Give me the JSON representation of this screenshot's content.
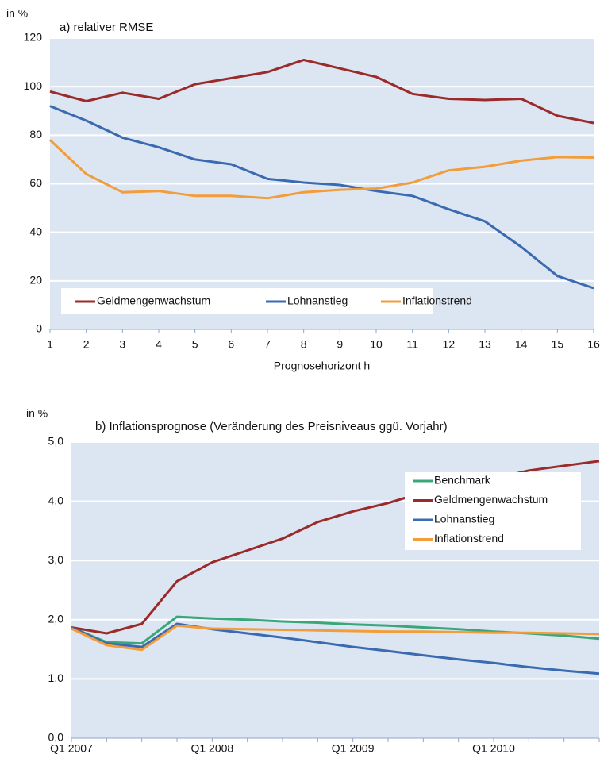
{
  "chart_data": [
    {
      "type": "line",
      "title": "a) relativer RMSE",
      "y_label": "in %",
      "x_label": "Prognosehorizont h",
      "x": [
        1,
        2,
        3,
        4,
        5,
        6,
        7,
        8,
        9,
        10,
        11,
        12,
        13,
        14,
        15,
        16
      ],
      "xlim": [
        1,
        16
      ],
      "xticks": [
        1,
        2,
        3,
        4,
        5,
        6,
        7,
        8,
        9,
        10,
        11,
        12,
        13,
        14,
        15,
        16
      ],
      "ylim": [
        0,
        120
      ],
      "yticks": [
        0,
        20,
        40,
        60,
        80,
        100,
        120
      ],
      "grid": true,
      "legend": "bottom-left",
      "series": [
        {
          "name": "Geldmengenwachstum",
          "color": "#9b2a2a",
          "values": [
            98,
            94,
            97.5,
            95,
            101,
            103.5,
            106,
            111,
            107.5,
            104,
            97,
            95,
            94.5,
            95,
            88,
            85
          ]
        },
        {
          "name": "Lohnanstieg",
          "color": "#3a6ab0",
          "values": [
            92,
            86,
            79,
            75,
            70,
            68,
            62,
            60.5,
            59.5,
            57,
            55,
            49.5,
            44.5,
            34,
            22,
            17
          ]
        },
        {
          "name": "Inflationstrend",
          "color": "#f39c3a",
          "values": [
            78,
            64,
            56.5,
            57,
            55,
            55,
            54,
            56.5,
            57.5,
            58,
            60.5,
            65.5,
            67,
            69.5,
            71,
            70.8
          ]
        }
      ]
    },
    {
      "type": "line",
      "title": "b) Inflationsprognose (Veränderung des Preisniveaus ggü. Vorjahr)",
      "y_label": "in %",
      "categories": [
        "Q1 2007",
        null,
        null,
        null,
        "Q1 2008",
        null,
        null,
        null,
        "Q1 2009",
        null,
        null,
        null,
        "Q1 2010",
        null,
        null,
        null
      ],
      "ylim": [
        0,
        5
      ],
      "yticks": [
        {
          "value": 0,
          "label": "0,0"
        },
        {
          "value": 1,
          "label": "1,0"
        },
        {
          "value": 2,
          "label": "2,0"
        },
        {
          "value": 3,
          "label": "3,0"
        },
        {
          "value": 4,
          "label": "4,0"
        },
        {
          "value": 5,
          "label": "5,0"
        }
      ],
      "grid": true,
      "legend": "top-right",
      "series": [
        {
          "name": "Benchmark",
          "color": "#3aa77a",
          "values": [
            1.87,
            1.62,
            1.6,
            2.05,
            2.02,
            2.0,
            1.97,
            1.95,
            1.92,
            1.9,
            1.87,
            1.84,
            1.8,
            1.77,
            1.73,
            1.68
          ]
        },
        {
          "name": "Geldmengenwachstum",
          "color": "#9b2a2a",
          "values": [
            1.87,
            1.77,
            1.93,
            2.65,
            2.97,
            3.17,
            3.37,
            3.65,
            3.83,
            3.97,
            4.15,
            4.27,
            4.38,
            4.52,
            4.6,
            4.68
          ]
        },
        {
          "name": "Lohnanstieg",
          "color": "#3a6ab0",
          "values": [
            1.87,
            1.6,
            1.54,
            1.93,
            1.84,
            1.77,
            1.7,
            1.62,
            1.54,
            1.47,
            1.4,
            1.33,
            1.27,
            1.2,
            1.14,
            1.09
          ]
        },
        {
          "name": "Inflationstrend",
          "color": "#f39c3a",
          "values": [
            1.85,
            1.57,
            1.49,
            1.9,
            1.85,
            1.84,
            1.83,
            1.82,
            1.81,
            1.8,
            1.8,
            1.79,
            1.78,
            1.78,
            1.77,
            1.76
          ]
        }
      ]
    }
  ]
}
